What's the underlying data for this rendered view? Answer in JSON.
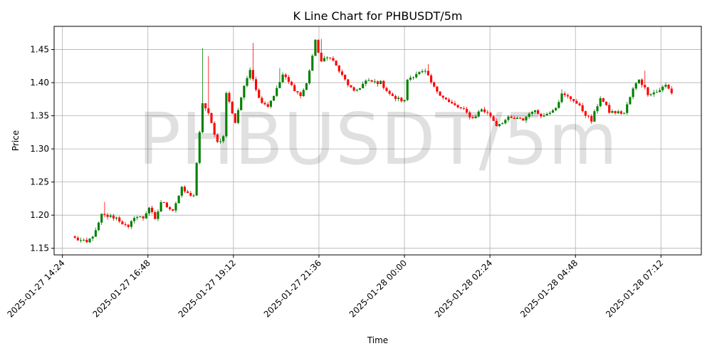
{
  "chart_data": {
    "type": "candlestick",
    "title": "K Line Chart for PHBUSDT/5m",
    "watermark": "PHBUSDT/5m",
    "xlabel": "Time",
    "ylabel": "Price",
    "interval_minutes": 5,
    "ylim": [
      1.14,
      1.485
    ],
    "xlim": [
      "2025-01-27 14:10",
      "2025-01-28 08:20"
    ],
    "x_ticks": [
      "2025-01-27 14:24",
      "2025-01-27 16:48",
      "2025-01-27 19:12",
      "2025-01-27 21:36",
      "2025-01-28 00:00",
      "2025-01-28 02:24",
      "2025-01-28 04:48",
      "2025-01-28 07:12"
    ],
    "y_ticks": [
      "1.15",
      "1.20",
      "1.25",
      "1.30",
      "1.35",
      "1.40",
      "1.45"
    ],
    "grid": true,
    "colors": {
      "up": "#008000",
      "down": "#ff0000",
      "grid": "#b0b0b0"
    },
    "first_candle_time": "2025-01-27 14:45",
    "anchors": [
      [
        "2025-01-27 14:45",
        1.165
      ],
      [
        "2025-01-27 15:05",
        1.158
      ],
      [
        "2025-01-27 15:20",
        1.175
      ],
      [
        "2025-01-27 15:30",
        1.2
      ],
      [
        "2025-01-27 15:55",
        1.196
      ],
      [
        "2025-01-27 16:15",
        1.18
      ],
      [
        "2025-01-27 16:25",
        1.198
      ],
      [
        "2025-01-27 16:40",
        1.196
      ],
      [
        "2025-01-27 16:50",
        1.212
      ],
      [
        "2025-01-27 17:00",
        1.192
      ],
      [
        "2025-01-27 17:10",
        1.22
      ],
      [
        "2025-01-27 17:30",
        1.208
      ],
      [
        "2025-01-27 17:45",
        1.24
      ],
      [
        "2025-01-27 17:55",
        1.232
      ],
      [
        "2025-01-27 18:05",
        1.23
      ],
      [
        "2025-01-27 18:20",
        1.37
      ],
      [
        "2025-01-27 18:30",
        1.352
      ],
      [
        "2025-01-27 18:45",
        1.31
      ],
      [
        "2025-01-27 18:55",
        1.318
      ],
      [
        "2025-01-27 19:00",
        1.385
      ],
      [
        "2025-01-27 19:15",
        1.34
      ],
      [
        "2025-01-27 19:25",
        1.378
      ],
      [
        "2025-01-27 19:40",
        1.422
      ],
      [
        "2025-01-27 19:55",
        1.376
      ],
      [
        "2025-01-27 20:10",
        1.365
      ],
      [
        "2025-01-27 20:25",
        1.39
      ],
      [
        "2025-01-27 20:35",
        1.412
      ],
      [
        "2025-01-27 20:50",
        1.395
      ],
      [
        "2025-01-27 21:05",
        1.38
      ],
      [
        "2025-01-27 21:15",
        1.398
      ],
      [
        "2025-01-27 21:30",
        1.462
      ],
      [
        "2025-01-27 21:40",
        1.432
      ],
      [
        "2025-01-27 21:55",
        1.44
      ],
      [
        "2025-01-27 22:15",
        1.41
      ],
      [
        "2025-01-27 22:35",
        1.385
      ],
      [
        "2025-01-27 22:55",
        1.402
      ],
      [
        "2025-01-27 23:20",
        1.4
      ],
      [
        "2025-01-27 23:40",
        1.378
      ],
      [
        "2025-01-28 00:00",
        1.372
      ],
      [
        "2025-01-28 00:05",
        1.405
      ],
      [
        "2025-01-28 00:20",
        1.414
      ],
      [
        "2025-01-28 00:35",
        1.416
      ],
      [
        "2025-01-28 00:50",
        1.392
      ],
      [
        "2025-01-28 01:15",
        1.37
      ],
      [
        "2025-01-28 01:40",
        1.358
      ],
      [
        "2025-01-28 01:55",
        1.346
      ],
      [
        "2025-01-28 02:10",
        1.36
      ],
      [
        "2025-01-28 02:25",
        1.35
      ],
      [
        "2025-01-28 02:35",
        1.336
      ],
      [
        "2025-01-28 02:55",
        1.346
      ],
      [
        "2025-01-28 03:20",
        1.344
      ],
      [
        "2025-01-28 03:35",
        1.358
      ],
      [
        "2025-01-28 03:55",
        1.35
      ],
      [
        "2025-01-28 04:15",
        1.364
      ],
      [
        "2025-01-28 04:25",
        1.382
      ],
      [
        "2025-01-28 04:45",
        1.374
      ],
      [
        "2025-01-28 05:00",
        1.358
      ],
      [
        "2025-01-28 05:15",
        1.342
      ],
      [
        "2025-01-28 05:30",
        1.378
      ],
      [
        "2025-01-28 05:45",
        1.356
      ],
      [
        "2025-01-28 06:10",
        1.354
      ],
      [
        "2025-01-28 06:25",
        1.39
      ],
      [
        "2025-01-28 06:35",
        1.406
      ],
      [
        "2025-01-28 06:50",
        1.384
      ],
      [
        "2025-01-28 07:05",
        1.386
      ],
      [
        "2025-01-28 07:20",
        1.396
      ],
      [
        "2025-01-28 07:30",
        1.385
      ]
    ],
    "spikes": [
      [
        "2025-01-27 15:35",
        1.22
      ],
      [
        "2025-01-27 18:20",
        1.452
      ],
      [
        "2025-01-27 18:30",
        1.44
      ],
      [
        "2025-01-27 19:45",
        1.46
      ],
      [
        "2025-01-27 21:40",
        1.466
      ],
      [
        "2025-01-27 20:30",
        1.422
      ],
      [
        "2025-01-28 00:40",
        1.428
      ],
      [
        "2025-01-28 04:25",
        1.39
      ],
      [
        "2025-01-28 06:45",
        1.418
      ]
    ]
  }
}
